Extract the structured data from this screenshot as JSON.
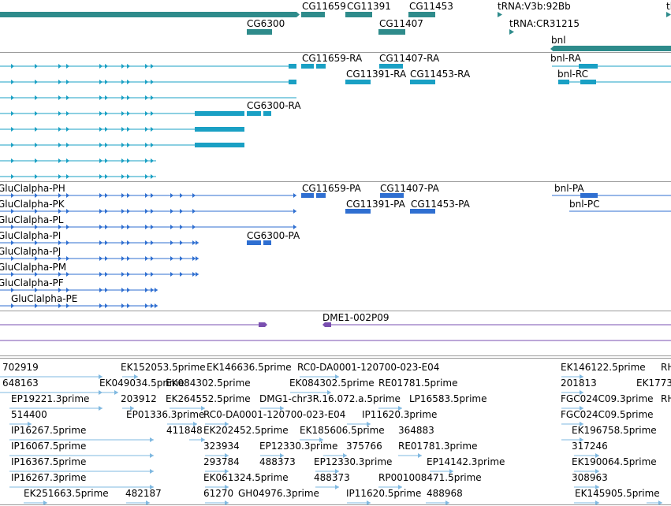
{
  "colors": {
    "gene": "#2e8b8b",
    "transcript": "#1aa0c4",
    "protein": "#2f6fd1",
    "bac": "#7a4fb0",
    "est": "#7fb8e0"
  },
  "gene_track": {
    "labels": [
      "CG11659",
      "CG11391",
      "CG11453",
      "tRNA:V3b:92Bb",
      "CG6300",
      "CG11407",
      "tRNA:CR31215",
      "bnl",
      "tl"
    ]
  },
  "transcript_track": {
    "labels": [
      "CG11659-RA",
      "CG11407-RA",
      "bnl-RA",
      "CG11391-RA",
      "CG11453-RA",
      "bnl-RC",
      "CG6300-RA"
    ]
  },
  "protein_track": {
    "labels": [
      "GluClalpha-PH",
      "CG11659-PA",
      "CG11407-PA",
      "bnl-PA",
      "GluClalpha-PK",
      "CG11391-PA",
      "CG11453-PA",
      "bnl-PC",
      "GluClalpha-PL",
      "GluClalpha-PI",
      "CG6300-PA",
      "GluClalpha-PJ",
      "GluClalpha-PM",
      "GluClalpha-PF",
      "GluClalpha-PE"
    ]
  },
  "bac_track": {
    "labels": [
      "DME1-002P09"
    ]
  },
  "est_track": {
    "labels": [
      "702919",
      "EK152053.5prime",
      "EK146636.5prime",
      "RC0-DA0001-120700-023-E04",
      "EK146122.5prime",
      "RH",
      "648163",
      "EK049034.5prime",
      "EK084302.5prime",
      "EK084302.5prime",
      "RE01781.5prime",
      "201813",
      "EK1773",
      "EP19221.3prime",
      "203912",
      "EK264552.5prime",
      "DMG1-chr3R.16.072.a.5prime",
      "LP16583.5prime",
      "FGC024C09.3prime",
      "RH",
      "514400",
      "EP01336.3prime",
      "RC0-DA0001-120700-023-E04",
      "IP11620.3prime",
      "FGC024C09.5prime",
      "IP16267.5prime",
      "411848",
      "EK202452.5prime",
      "EK185606.5prime",
      "364883",
      "EK196758.5prime",
      "IP16067.5prime",
      "323934",
      "EP12330.3prime",
      "375766",
      "RE01781.3prime",
      "317246",
      "IP16367.5prime",
      "293784",
      "488373",
      "EP12330.3prime",
      "EP14142.3prime",
      "EK190064.5prime",
      "IP16267.3prime",
      "EK061324.5prime",
      "488373",
      "RP001008471.5prime",
      "308963",
      "EK251663.5prime",
      "482187",
      "61270",
      "GH04976.3prime",
      "IP11620.5prime",
      "488968",
      "EK145905.5prime"
    ]
  }
}
